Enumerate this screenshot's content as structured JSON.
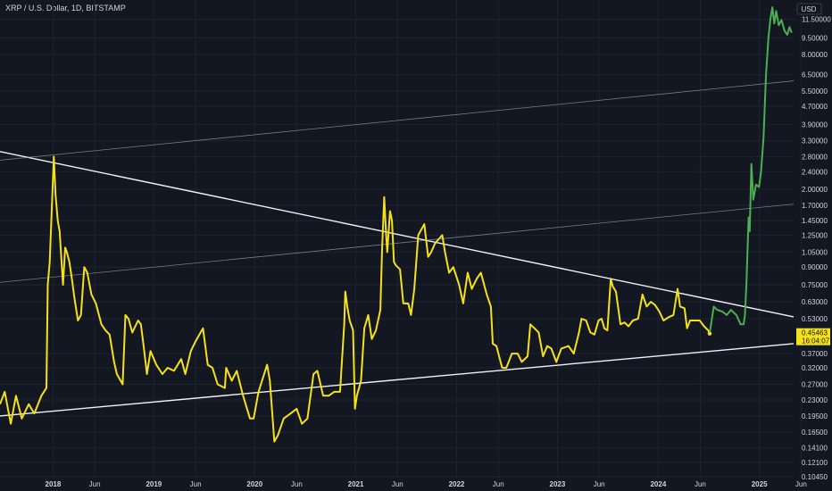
{
  "header": {
    "title": "XRP / U.S. Dollar, 1D, BITSTAMP"
  },
  "chart_data": {
    "type": "line",
    "title": "XRP / U.S. Dollar, 1D, BITSTAMP",
    "currency": "USD",
    "scale": "log",
    "ylim": [
      0.1045,
      14.0
    ],
    "xlim": [
      "2017-06-23",
      "2025-05-05"
    ],
    "price_label": "0.45463",
    "countdown_label": "16:04:07",
    "y_ticks": [
      "11.50000",
      "9.50000",
      "8.00000",
      "6.50000",
      "5.50000",
      "4.70000",
      "3.90000",
      "3.30000",
      "2.80000",
      "2.40000",
      "2.00000",
      "1.70000",
      "1.45000",
      "1.25000",
      "1.05000",
      "0.90000",
      "0.75000",
      "0.63000",
      "0.53000",
      "0.45463",
      "0.37000",
      "0.32000",
      "0.27000",
      "0.23000",
      "0.19500",
      "0.16500",
      "0.14100",
      "0.12100",
      "0.10450"
    ],
    "x_ticks": [
      {
        "label": "2018",
        "date": "2018-01-01",
        "year": true
      },
      {
        "label": "Jun",
        "date": "2018-06-01",
        "year": false
      },
      {
        "label": "2019",
        "date": "2019-01-01",
        "year": true
      },
      {
        "label": "Jun",
        "date": "2019-06-01",
        "year": false
      },
      {
        "label": "2020",
        "date": "2020-01-01",
        "year": true
      },
      {
        "label": "Jun",
        "date": "2020-06-01",
        "year": false
      },
      {
        "label": "2021",
        "date": "2021-01-01",
        "year": true
      },
      {
        "label": "Jun",
        "date": "2021-06-01",
        "year": false
      },
      {
        "label": "2022",
        "date": "2022-01-01",
        "year": true
      },
      {
        "label": "Jun",
        "date": "2022-06-01",
        "year": false
      },
      {
        "label": "2023",
        "date": "2023-01-01",
        "year": true
      },
      {
        "label": "Jun",
        "date": "2023-06-01",
        "year": false
      },
      {
        "label": "2024",
        "date": "2024-01-01",
        "year": true
      },
      {
        "label": "Jun",
        "date": "2024-06-01",
        "year": false
      },
      {
        "label": "2025",
        "date": "2025-01-01",
        "year": true
      },
      {
        "label": "Jun",
        "date": "2025-06-01",
        "year": false
      }
    ],
    "series": [
      {
        "color": "#f5e11a",
        "points": [
          [
            "2017-06-23",
            0.22
          ],
          [
            "2017-07-10",
            0.25
          ],
          [
            "2017-08-01",
            0.18
          ],
          [
            "2017-08-20",
            0.24
          ],
          [
            "2017-09-10",
            0.19
          ],
          [
            "2017-10-05",
            0.22
          ],
          [
            "2017-10-25",
            0.2
          ],
          [
            "2017-11-20",
            0.24
          ],
          [
            "2017-12-08",
            0.26
          ],
          [
            "2017-12-13",
            0.75
          ],
          [
            "2017-12-20",
            0.95
          ],
          [
            "2018-01-04",
            2.8
          ],
          [
            "2018-01-10",
            1.9
          ],
          [
            "2018-01-18",
            1.45
          ],
          [
            "2018-01-25",
            1.3
          ],
          [
            "2018-02-06",
            0.75
          ],
          [
            "2018-02-14",
            1.1
          ],
          [
            "2018-02-20",
            1.05
          ],
          [
            "2018-03-01",
            0.95
          ],
          [
            "2018-03-10",
            0.8
          ],
          [
            "2018-03-20",
            0.65
          ],
          [
            "2018-04-01",
            0.52
          ],
          [
            "2018-04-12",
            0.55
          ],
          [
            "2018-04-24",
            0.9
          ],
          [
            "2018-05-05",
            0.85
          ],
          [
            "2018-05-20",
            0.68
          ],
          [
            "2018-06-05",
            0.62
          ],
          [
            "2018-06-25",
            0.5
          ],
          [
            "2018-07-10",
            0.47
          ],
          [
            "2018-07-25",
            0.45
          ],
          [
            "2018-08-10",
            0.34
          ],
          [
            "2018-08-20",
            0.3
          ],
          [
            "2018-09-10",
            0.27
          ],
          [
            "2018-09-20",
            0.55
          ],
          [
            "2018-10-01",
            0.53
          ],
          [
            "2018-10-15",
            0.46
          ],
          [
            "2018-11-05",
            0.52
          ],
          [
            "2018-11-15",
            0.5
          ],
          [
            "2018-11-25",
            0.4
          ],
          [
            "2018-12-07",
            0.3
          ],
          [
            "2018-12-20",
            0.38
          ],
          [
            "2019-01-10",
            0.33
          ],
          [
            "2019-02-01",
            0.3
          ],
          [
            "2019-02-20",
            0.32
          ],
          [
            "2019-03-15",
            0.31
          ],
          [
            "2019-04-10",
            0.35
          ],
          [
            "2019-04-25",
            0.3
          ],
          [
            "2019-05-15",
            0.38
          ],
          [
            "2019-06-01",
            0.42
          ],
          [
            "2019-06-15",
            0.45
          ],
          [
            "2019-06-28",
            0.48
          ],
          [
            "2019-07-15",
            0.33
          ],
          [
            "2019-08-01",
            0.32
          ],
          [
            "2019-08-20",
            0.27
          ],
          [
            "2019-09-15",
            0.26
          ],
          [
            "2019-09-20",
            0.32
          ],
          [
            "2019-10-10",
            0.28
          ],
          [
            "2019-10-28",
            0.31
          ],
          [
            "2019-11-20",
            0.24
          ],
          [
            "2019-12-15",
            0.19
          ],
          [
            "2019-12-28",
            0.19
          ],
          [
            "2020-01-15",
            0.25
          ],
          [
            "2020-02-15",
            0.33
          ],
          [
            "2020-02-25",
            0.28
          ],
          [
            "2020-03-12",
            0.15
          ],
          [
            "2020-03-25",
            0.16
          ],
          [
            "2020-04-15",
            0.19
          ],
          [
            "2020-05-10",
            0.2
          ],
          [
            "2020-06-01",
            0.21
          ],
          [
            "2020-06-20",
            0.18
          ],
          [
            "2020-07-10",
            0.19
          ],
          [
            "2020-08-01",
            0.3
          ],
          [
            "2020-08-15",
            0.31
          ],
          [
            "2020-09-05",
            0.24
          ],
          [
            "2020-09-25",
            0.24
          ],
          [
            "2020-10-15",
            0.25
          ],
          [
            "2020-11-05",
            0.25
          ],
          [
            "2020-11-20",
            0.5
          ],
          [
            "2020-11-24",
            0.7
          ],
          [
            "2020-12-01",
            0.6
          ],
          [
            "2020-12-10",
            0.52
          ],
          [
            "2020-12-22",
            0.47
          ],
          [
            "2020-12-29",
            0.21
          ],
          [
            "2021-01-05",
            0.24
          ],
          [
            "2021-01-20",
            0.28
          ],
          [
            "2021-02-01",
            0.48
          ],
          [
            "2021-02-15",
            0.55
          ],
          [
            "2021-02-28",
            0.43
          ],
          [
            "2021-03-15",
            0.47
          ],
          [
            "2021-03-31",
            0.58
          ],
          [
            "2021-04-06",
            1.05
          ],
          [
            "2021-04-14",
            1.85
          ],
          [
            "2021-04-20",
            1.3
          ],
          [
            "2021-04-25",
            1.05
          ],
          [
            "2021-05-05",
            1.6
          ],
          [
            "2021-05-12",
            1.45
          ],
          [
            "2021-05-19",
            0.95
          ],
          [
            "2021-05-25",
            0.92
          ],
          [
            "2021-06-10",
            0.88
          ],
          [
            "2021-06-22",
            0.62
          ],
          [
            "2021-07-10",
            0.62
          ],
          [
            "2021-07-20",
            0.55
          ],
          [
            "2021-08-01",
            0.72
          ],
          [
            "2021-08-15",
            1.25
          ],
          [
            "2021-09-06",
            1.4
          ],
          [
            "2021-09-20",
            1.0
          ],
          [
            "2021-10-01",
            1.05
          ],
          [
            "2021-10-15",
            1.15
          ],
          [
            "2021-11-10",
            1.25
          ],
          [
            "2021-11-20",
            1.05
          ],
          [
            "2021-12-05",
            0.85
          ],
          [
            "2021-12-20",
            0.9
          ],
          [
            "2022-01-10",
            0.75
          ],
          [
            "2022-01-25",
            0.62
          ],
          [
            "2022-02-10",
            0.85
          ],
          [
            "2022-02-25",
            0.72
          ],
          [
            "2022-03-15",
            0.8
          ],
          [
            "2022-03-30",
            0.85
          ],
          [
            "2022-04-20",
            0.68
          ],
          [
            "2022-05-05",
            0.6
          ],
          [
            "2022-05-12",
            0.41
          ],
          [
            "2022-05-25",
            0.4
          ],
          [
            "2022-06-15",
            0.32
          ],
          [
            "2022-06-30",
            0.32
          ],
          [
            "2022-07-20",
            0.37
          ],
          [
            "2022-08-10",
            0.37
          ],
          [
            "2022-08-25",
            0.34
          ],
          [
            "2022-09-15",
            0.36
          ],
          [
            "2022-09-25",
            0.5
          ],
          [
            "2022-10-10",
            0.48
          ],
          [
            "2022-10-25",
            0.46
          ],
          [
            "2022-11-10",
            0.36
          ],
          [
            "2022-11-25",
            0.4
          ],
          [
            "2022-12-10",
            0.39
          ],
          [
            "2022-12-28",
            0.34
          ],
          [
            "2023-01-15",
            0.39
          ],
          [
            "2023-02-10",
            0.4
          ],
          [
            "2023-03-01",
            0.37
          ],
          [
            "2023-03-20",
            0.46
          ],
          [
            "2023-03-29",
            0.53
          ],
          [
            "2023-04-15",
            0.52
          ],
          [
            "2023-04-30",
            0.46
          ],
          [
            "2023-05-15",
            0.45
          ],
          [
            "2023-05-30",
            0.52
          ],
          [
            "2023-06-10",
            0.53
          ],
          [
            "2023-06-20",
            0.48
          ],
          [
            "2023-07-01",
            0.47
          ],
          [
            "2023-07-13",
            0.8
          ],
          [
            "2023-07-20",
            0.74
          ],
          [
            "2023-08-01",
            0.7
          ],
          [
            "2023-08-17",
            0.5
          ],
          [
            "2023-09-01",
            0.51
          ],
          [
            "2023-09-15",
            0.49
          ],
          [
            "2023-10-01",
            0.52
          ],
          [
            "2023-10-20",
            0.53
          ],
          [
            "2023-11-05",
            0.68
          ],
          [
            "2023-11-20",
            0.6
          ],
          [
            "2023-12-05",
            0.63
          ],
          [
            "2023-12-20",
            0.61
          ],
          [
            "2024-01-05",
            0.57
          ],
          [
            "2024-01-20",
            0.52
          ],
          [
            "2024-02-10",
            0.54
          ],
          [
            "2024-02-25",
            0.55
          ],
          [
            "2024-03-11",
            0.72
          ],
          [
            "2024-03-20",
            0.6
          ],
          [
            "2024-04-05",
            0.59
          ],
          [
            "2024-04-14",
            0.48
          ],
          [
            "2024-04-25",
            0.52
          ],
          [
            "2024-05-15",
            0.52
          ],
          [
            "2024-05-30",
            0.52
          ],
          [
            "2024-06-15",
            0.49
          ],
          [
            "2024-06-30",
            0.47
          ],
          [
            "2024-07-05",
            0.45463
          ]
        ]
      },
      {
        "color": "#4caf50",
        "points": [
          [
            "2024-07-05",
            0.45463
          ],
          [
            "2024-07-20",
            0.6
          ],
          [
            "2024-08-01",
            0.58
          ],
          [
            "2024-08-20",
            0.57
          ],
          [
            "2024-09-05",
            0.55
          ],
          [
            "2024-09-20",
            0.58
          ],
          [
            "2024-10-10",
            0.55
          ],
          [
            "2024-10-25",
            0.5
          ],
          [
            "2024-11-05",
            0.5
          ],
          [
            "2024-11-10",
            0.55
          ],
          [
            "2024-11-15",
            0.75
          ],
          [
            "2024-11-23",
            1.5
          ],
          [
            "2024-11-27",
            1.3
          ],
          [
            "2024-12-03",
            2.6
          ],
          [
            "2024-12-10",
            1.8
          ],
          [
            "2024-12-20",
            2.1
          ],
          [
            "2024-12-31",
            2.05
          ],
          [
            "2025-01-07",
            2.4
          ],
          [
            "2025-01-16",
            3.4
          ],
          [
            "2025-01-25",
            6.5
          ],
          [
            "2025-02-03",
            9.5
          ],
          [
            "2025-02-10",
            11.5
          ],
          [
            "2025-02-17",
            13.0
          ],
          [
            "2025-02-24",
            11.0
          ],
          [
            "2025-03-03",
            12.5
          ],
          [
            "2025-03-12",
            10.8
          ],
          [
            "2025-03-22",
            11.4
          ],
          [
            "2025-04-02",
            10.2
          ],
          [
            "2025-04-12",
            9.8
          ],
          [
            "2025-04-20",
            10.6
          ],
          [
            "2025-04-28",
            10.0
          ]
        ]
      }
    ],
    "trendlines": [
      {
        "color": "#ffffff",
        "width": 1.4,
        "opacity": 0.95,
        "from": [
          "2017-06-23",
          2.95
        ],
        "to": [
          "2025-05-05",
          0.54
        ]
      },
      {
        "color": "#ffffff",
        "width": 1.4,
        "opacity": 0.95,
        "from": [
          "2017-06-23",
          0.195
        ],
        "to": [
          "2025-05-05",
          0.41
        ]
      },
      {
        "color": "#a0a4ae",
        "width": 0.8,
        "opacity": 0.7,
        "from": [
          "2017-06-23",
          2.7
        ],
        "to": [
          "2025-05-05",
          6.1
        ]
      },
      {
        "color": "#a0a4ae",
        "width": 0.8,
        "opacity": 0.7,
        "from": [
          "2017-06-23",
          0.77
        ],
        "to": [
          "2025-05-05",
          1.72
        ]
      }
    ]
  }
}
